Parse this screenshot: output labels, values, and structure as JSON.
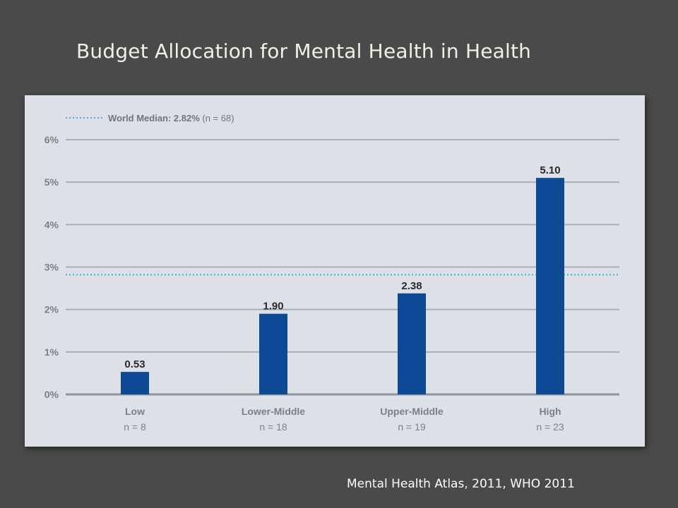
{
  "slide": {
    "title": "Budget Allocation for Mental Health in Health",
    "source": "Mental Health Atlas, 2011, WHO 2011"
  },
  "colors": {
    "background": "#4a4a4a",
    "panel": "#dde0e6",
    "bar": "#0c4a96",
    "median_line": "#4aa8d8",
    "axis_text": "#7a8088",
    "label_text": "#2a2a2a"
  },
  "chart_data": {
    "type": "bar",
    "title": "",
    "xlabel": "",
    "ylabel": "",
    "ylim": [
      0,
      6
    ],
    "yticks": [
      "0%",
      "1%",
      "2%",
      "3%",
      "4%",
      "5%",
      "6%"
    ],
    "grid": true,
    "categories": [
      "Low",
      "Lower-Middle",
      "Upper-Middle",
      "High"
    ],
    "category_sublabels": [
      "n = 8",
      "n = 18",
      "n = 19",
      "n = 23"
    ],
    "values": [
      0.53,
      1.9,
      2.38,
      5.1
    ],
    "data_labels": [
      "0.53",
      "1.90",
      "2.38",
      "5.10"
    ],
    "reference_line": {
      "value": 2.82,
      "legend_main": "World Median: 2.82%",
      "legend_n": "(n = 68)",
      "style": "dotted"
    },
    "legend_position": "top-left"
  }
}
